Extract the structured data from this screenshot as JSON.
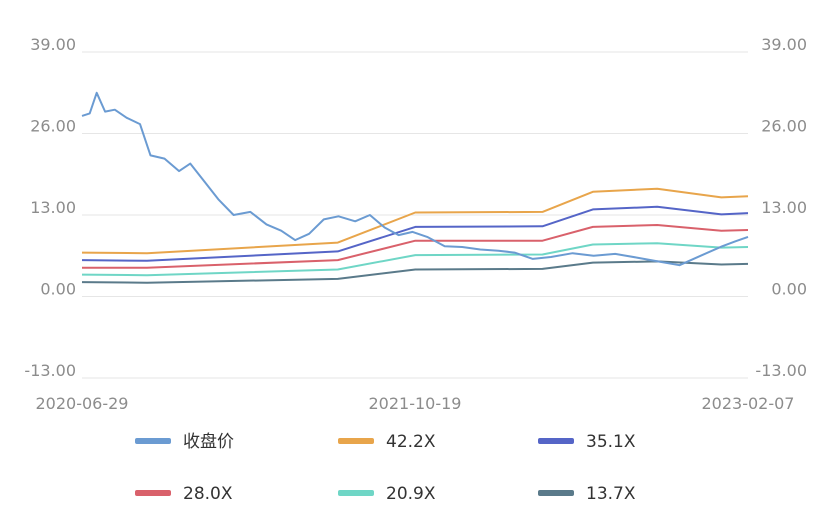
{
  "chart_data": {
    "type": "line",
    "title": "",
    "xlabel": "",
    "ylabel": "",
    "ylim": [
      -13,
      39
    ],
    "y_ticks": [
      "39.00",
      "26.00",
      "13.00",
      "0.00",
      "-13.00"
    ],
    "y_ticks_right": [
      "39.00",
      "26.00",
      "13.00",
      "0.00",
      "-13.00"
    ],
    "x_tick_labels": [
      "2020-06-29",
      "2021-10-19",
      "2023-02-07"
    ],
    "x_range": [
      "2020-06-29",
      "2023-02-07"
    ],
    "grid": true,
    "legend_position": "bottom",
    "series": [
      {
        "name": "收盘价",
        "color": "#6b9bd2",
        "points": [
          [
            "2020-06-29",
            28.8
          ],
          [
            "2020-07-10",
            29.2
          ],
          [
            "2020-07-20",
            32.5
          ],
          [
            "2020-08-01",
            29.5
          ],
          [
            "2020-08-15",
            29.8
          ],
          [
            "2020-09-01",
            28.5
          ],
          [
            "2020-09-20",
            27.5
          ],
          [
            "2020-10-05",
            22.5
          ],
          [
            "2020-10-25",
            22.0
          ],
          [
            "2020-11-15",
            20.0
          ],
          [
            "2020-12-01",
            21.2
          ],
          [
            "2020-12-20",
            18.5
          ],
          [
            "2021-01-10",
            15.5
          ],
          [
            "2021-02-01",
            13.0
          ],
          [
            "2021-02-25",
            13.5
          ],
          [
            "2021-03-20",
            11.5
          ],
          [
            "2021-04-10",
            10.5
          ],
          [
            "2021-04-30",
            9.0
          ],
          [
            "2021-05-20",
            10.0
          ],
          [
            "2021-06-10",
            12.3
          ],
          [
            "2021-07-01",
            12.8
          ],
          [
            "2021-07-25",
            12.0
          ],
          [
            "2021-08-15",
            13.0
          ],
          [
            "2021-09-05",
            11.0
          ],
          [
            "2021-09-25",
            9.8
          ],
          [
            "2021-10-15",
            10.3
          ],
          [
            "2021-11-05",
            9.5
          ],
          [
            "2021-11-30",
            8.0
          ],
          [
            "2021-12-25",
            7.9
          ],
          [
            "2022-01-20",
            7.5
          ],
          [
            "2022-02-15",
            7.3
          ],
          [
            "2022-03-10",
            7.0
          ],
          [
            "2022-04-05",
            6.0
          ],
          [
            "2022-05-01",
            6.3
          ],
          [
            "2022-06-01",
            6.9
          ],
          [
            "2022-07-01",
            6.5
          ],
          [
            "2022-08-01",
            6.8
          ],
          [
            "2022-09-01",
            6.2
          ],
          [
            "2022-10-01",
            5.6
          ],
          [
            "2022-11-01",
            5.0
          ],
          [
            "2022-12-01",
            6.5
          ],
          [
            "2023-01-01",
            8.0
          ],
          [
            "2023-01-20",
            8.8
          ],
          [
            "2023-02-07",
            9.5
          ]
        ]
      },
      {
        "name": "42.2X",
        "color": "#e8a54b",
        "points": [
          [
            "2020-06-29",
            7.0
          ],
          [
            "2020-09-30",
            6.9
          ],
          [
            "2021-06-30",
            8.6
          ],
          [
            "2021-10-19",
            13.4
          ],
          [
            "2022-04-19",
            13.5
          ],
          [
            "2022-06-30",
            16.7
          ],
          [
            "2022-09-30",
            17.2
          ],
          [
            "2022-12-31",
            15.8
          ],
          [
            "2023-02-07",
            16.0
          ]
        ]
      },
      {
        "name": "35.1X",
        "color": "#5565c7",
        "points": [
          [
            "2020-06-29",
            5.8
          ],
          [
            "2020-09-30",
            5.7
          ],
          [
            "2021-06-30",
            7.2
          ],
          [
            "2021-10-19",
            11.1
          ],
          [
            "2022-04-19",
            11.2
          ],
          [
            "2022-06-30",
            13.9
          ],
          [
            "2022-09-30",
            14.3
          ],
          [
            "2022-12-31",
            13.1
          ],
          [
            "2023-02-07",
            13.3
          ]
        ]
      },
      {
        "name": "28.0X",
        "color": "#d9616b",
        "points": [
          [
            "2020-06-29",
            4.6
          ],
          [
            "2020-09-30",
            4.6
          ],
          [
            "2021-06-30",
            5.8
          ],
          [
            "2021-10-19",
            8.9
          ],
          [
            "2022-04-19",
            8.9
          ],
          [
            "2022-06-30",
            11.1
          ],
          [
            "2022-09-30",
            11.4
          ],
          [
            "2022-12-31",
            10.5
          ],
          [
            "2023-02-07",
            10.6
          ]
        ]
      },
      {
        "name": "20.9X",
        "color": "#6fd6c6",
        "points": [
          [
            "2020-06-29",
            3.5
          ],
          [
            "2020-09-30",
            3.4
          ],
          [
            "2021-06-30",
            4.3
          ],
          [
            "2021-10-19",
            6.6
          ],
          [
            "2022-04-19",
            6.7
          ],
          [
            "2022-06-30",
            8.3
          ],
          [
            "2022-09-30",
            8.5
          ],
          [
            "2022-12-31",
            7.8
          ],
          [
            "2023-02-07",
            7.9
          ]
        ]
      },
      {
        "name": "13.7X",
        "color": "#5a7a8a",
        "points": [
          [
            "2020-06-29",
            2.3
          ],
          [
            "2020-09-30",
            2.2
          ],
          [
            "2021-06-30",
            2.8
          ],
          [
            "2021-10-19",
            4.3
          ],
          [
            "2022-04-19",
            4.4
          ],
          [
            "2022-06-30",
            5.4
          ],
          [
            "2022-09-30",
            5.6
          ],
          [
            "2022-12-31",
            5.1
          ],
          [
            "2023-02-07",
            5.2
          ]
        ]
      }
    ]
  }
}
